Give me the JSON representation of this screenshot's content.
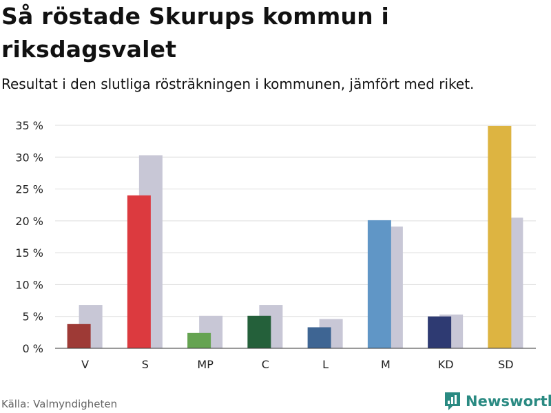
{
  "header": {
    "title": "Så röstade Skurups kommun i riksdagsvalet",
    "subtitle": "Resultat i den slutliga rösträkningen i kommunen, jämfört med riket."
  },
  "footer": {
    "source": "Källa: Valmyndigheten",
    "brand": "Newsworthy"
  },
  "colors": {
    "national": "#c8c7d6",
    "grid": "#dddddd",
    "brand": "#2a8a82"
  },
  "chart_data": {
    "type": "bar",
    "title": "Så röstade Skurups kommun i riksdagsvalet",
    "subtitle": "Resultat i den slutliga rösträkningen i kommunen, jämfört med riket.",
    "xlabel": "",
    "ylabel": "",
    "ylim": [
      0,
      35
    ],
    "yticks": [
      0,
      5,
      10,
      15,
      20,
      25,
      30,
      35
    ],
    "ytick_labels": [
      "0 %",
      "5 %",
      "10 %",
      "15 %",
      "20 %",
      "25 %",
      "30 %",
      "35 %"
    ],
    "grid": true,
    "legend": "none",
    "categories": [
      "V",
      "S",
      "MP",
      "C",
      "L",
      "M",
      "KD",
      "SD"
    ],
    "series": [
      {
        "name": "Skurups kommun",
        "values": [
          3.8,
          24.0,
          2.4,
          5.1,
          3.3,
          20.1,
          5.0,
          34.9
        ],
        "colors": [
          "#9e3a36",
          "#dc3a3f",
          "#65a351",
          "#24603a",
          "#3e6593",
          "#6096c6",
          "#2e3a72",
          "#ddb441"
        ]
      },
      {
        "name": "Riket",
        "values": [
          6.8,
          30.3,
          5.1,
          6.8,
          4.6,
          19.1,
          5.3,
          20.5
        ],
        "color": "#c8c7d6"
      }
    ]
  }
}
